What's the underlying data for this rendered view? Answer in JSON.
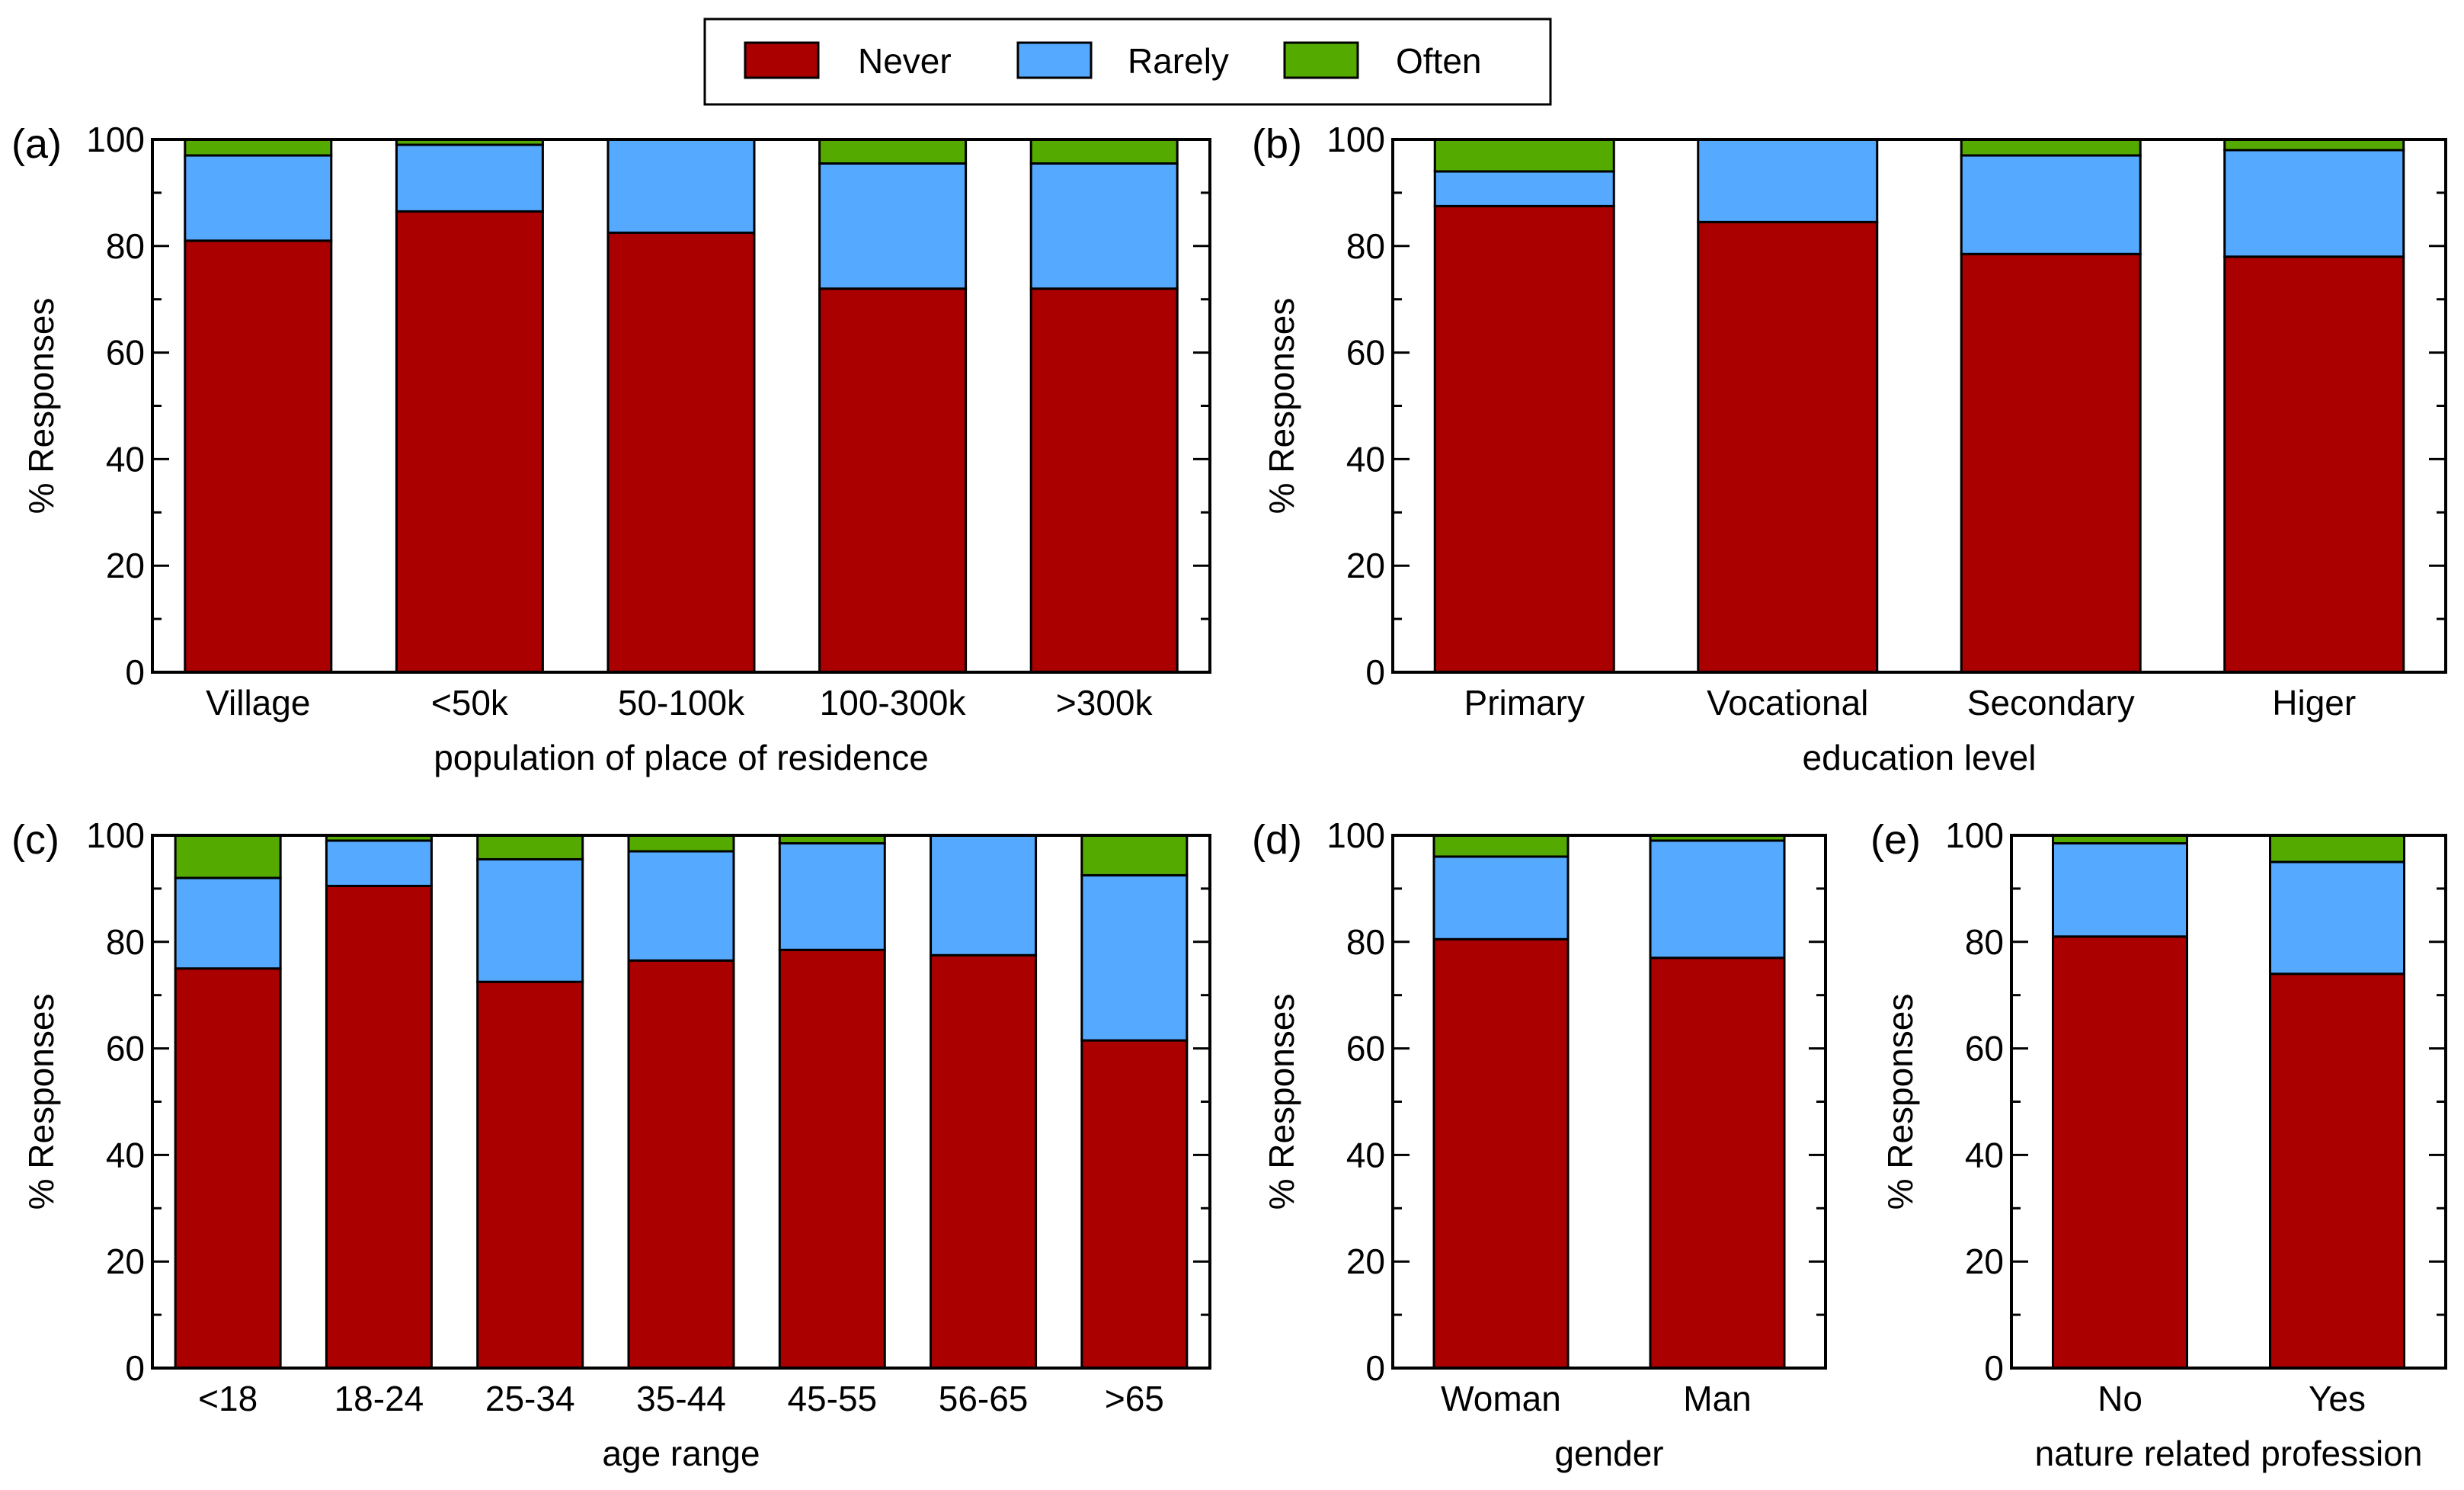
{
  "colors": {
    "Never": "#aa0000",
    "Rarely": "#55aaff",
    "Often": "#55aa00"
  },
  "legend": [
    "Never",
    "Rarely",
    "Often"
  ],
  "chart_data": [
    {
      "id": "a",
      "panel_label": "(a)",
      "type": "bar",
      "stacked": true,
      "xlabel": "population of place of residence",
      "ylabel": "% Responses",
      "ylim": [
        0,
        100
      ],
      "yticks": [
        0,
        20,
        40,
        60,
        80,
        100
      ],
      "categories": [
        "Village",
        "<50k",
        "50-100k",
        "100-300k",
        ">300k"
      ],
      "series": [
        {
          "name": "Never",
          "values": [
            81,
            86.5,
            82.5,
            72,
            72
          ]
        },
        {
          "name": "Rarely",
          "values": [
            16,
            12.5,
            17.5,
            23.5,
            23.5
          ]
        },
        {
          "name": "Often",
          "values": [
            3,
            1,
            0,
            4.5,
            4.5
          ]
        }
      ]
    },
    {
      "id": "b",
      "panel_label": "(b)",
      "type": "bar",
      "stacked": true,
      "xlabel": "education level",
      "ylabel": "% Responses",
      "ylim": [
        0,
        100
      ],
      "yticks": [
        0,
        20,
        40,
        60,
        80,
        100
      ],
      "categories": [
        "Primary",
        "Vocational",
        "Secondary",
        "Higer"
      ],
      "series": [
        {
          "name": "Never",
          "values": [
            87.5,
            84.5,
            78.5,
            78
          ]
        },
        {
          "name": "Rarely",
          "values": [
            6.5,
            15.5,
            18.5,
            20
          ]
        },
        {
          "name": "Often",
          "values": [
            6,
            0,
            3,
            2
          ]
        }
      ]
    },
    {
      "id": "c",
      "panel_label": "(c)",
      "type": "bar",
      "stacked": true,
      "xlabel": "age range",
      "ylabel": "% Responses",
      "ylim": [
        0,
        100
      ],
      "yticks": [
        0,
        20,
        40,
        60,
        80,
        100
      ],
      "categories": [
        "<18",
        "18-24",
        "25-34",
        "35-44",
        "45-55",
        "56-65",
        ">65"
      ],
      "series": [
        {
          "name": "Never",
          "values": [
            75,
            90.5,
            72.5,
            76.5,
            78.5,
            77.5,
            61.5
          ]
        },
        {
          "name": "Rarely",
          "values": [
            17,
            8.5,
            23,
            20.5,
            20,
            22.5,
            31
          ]
        },
        {
          "name": "Often",
          "values": [
            8,
            1,
            4.5,
            3,
            1.5,
            0,
            7.5
          ]
        }
      ]
    },
    {
      "id": "d",
      "panel_label": "(d)",
      "type": "bar",
      "stacked": true,
      "xlabel": "gender",
      "ylabel": "% Responses",
      "ylim": [
        0,
        100
      ],
      "yticks": [
        0,
        20,
        40,
        60,
        80,
        100
      ],
      "categories": [
        "Woman",
        "Man"
      ],
      "series": [
        {
          "name": "Never",
          "values": [
            80.5,
            77
          ]
        },
        {
          "name": "Rarely",
          "values": [
            15.5,
            22
          ]
        },
        {
          "name": "Often",
          "values": [
            4,
            1
          ]
        }
      ]
    },
    {
      "id": "e",
      "panel_label": "(e)",
      "type": "bar",
      "stacked": true,
      "xlabel": "nature related profession",
      "ylabel": "% Responses",
      "ylim": [
        0,
        100
      ],
      "yticks": [
        0,
        20,
        40,
        60,
        80,
        100
      ],
      "categories": [
        "No",
        "Yes"
      ],
      "series": [
        {
          "name": "Never",
          "values": [
            81,
            74
          ]
        },
        {
          "name": "Rarely",
          "values": [
            17.5,
            21
          ]
        },
        {
          "name": "Often",
          "values": [
            1.5,
            5
          ]
        }
      ]
    }
  ]
}
